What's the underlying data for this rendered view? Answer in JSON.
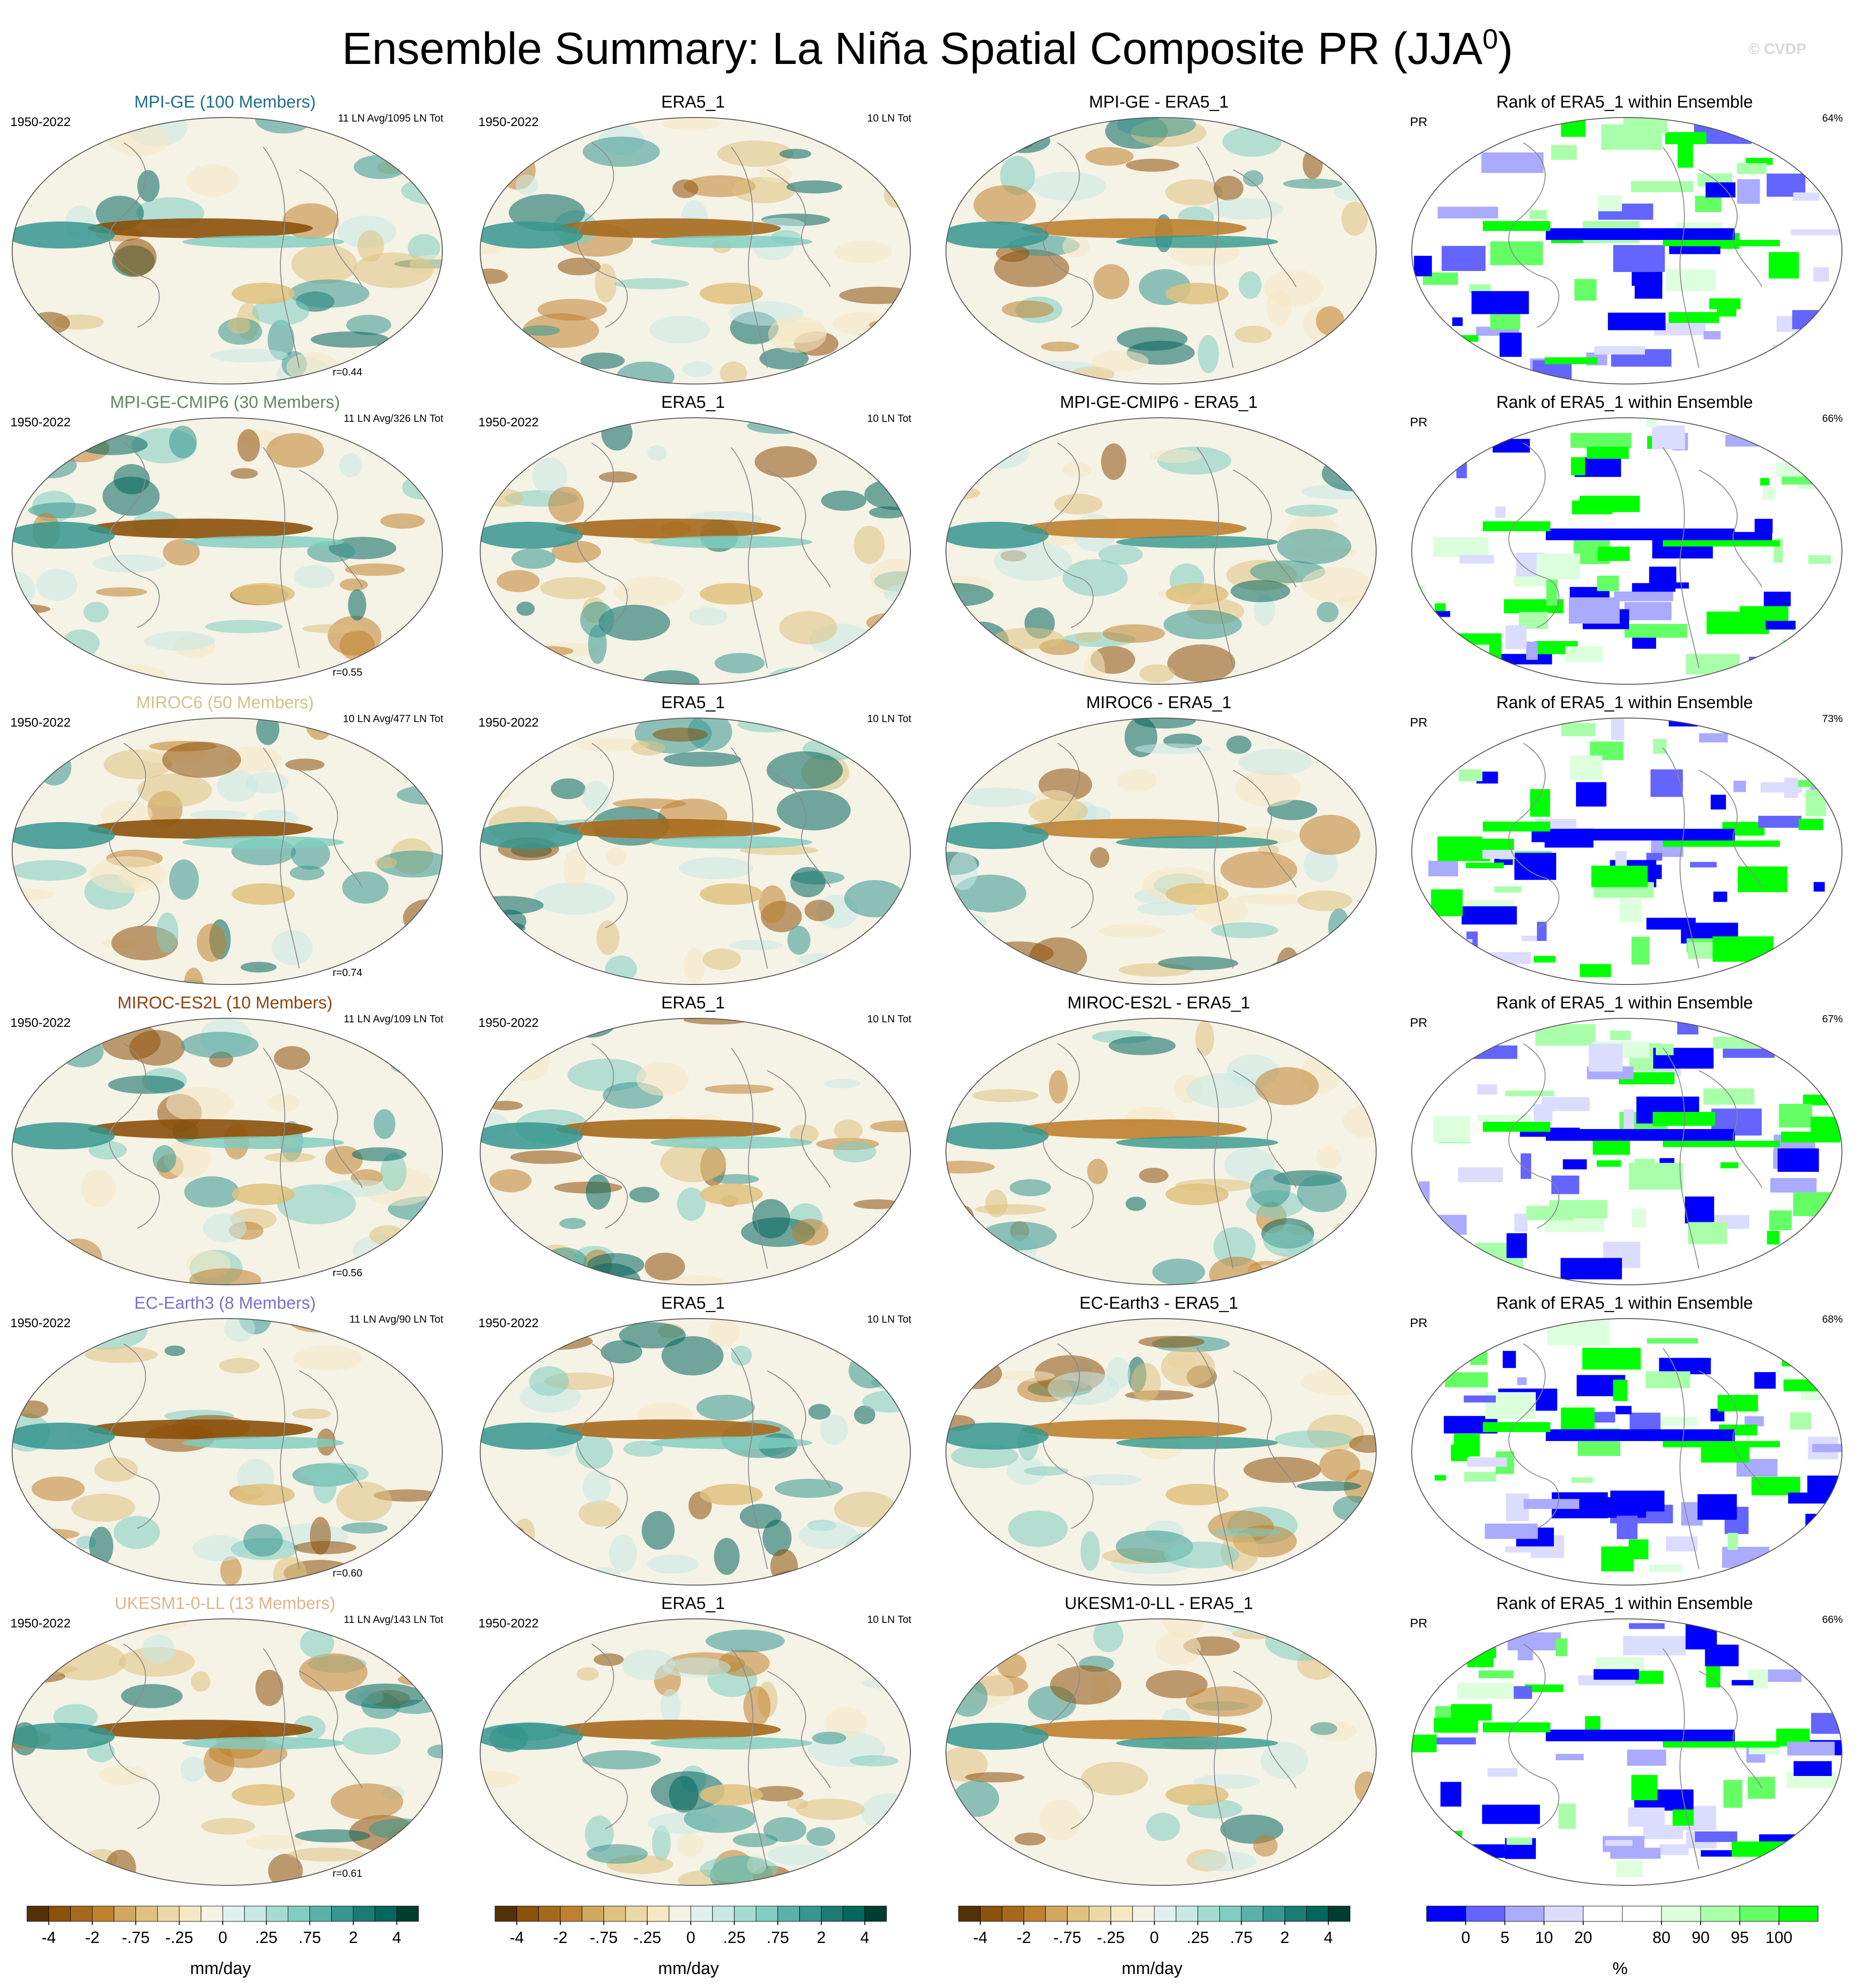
{
  "figure": {
    "title_main": "Ensemble Summary: La Niña Spatial Composite PR (JJA",
    "title_sup": "0",
    "title_close": ")",
    "watermark": "© CVDP"
  },
  "chart_data": {
    "type": "heatmap",
    "layout": "6 rows x 4 columns of global maps",
    "colors": {
      "dry": "#543005",
      "wet": "#003c30",
      "rank_low": "#0000ff",
      "rank_high": "#00ff00",
      "model_title_colors": [
        "#1f6e8c",
        "#5e8a5e",
        "#cfc38a",
        "#8b4513",
        "#7c6fcf",
        "#e0b48a"
      ]
    },
    "rows": [
      {
        "model_title": "MPI-GE (100 Members)",
        "model_title_color": "#1f6e8c",
        "period": "1950-2022",
        "model_count": "11 LN Avg/1095 LN Tot",
        "pattern_corr": "r=0.44",
        "obs_title": "ERA5_1",
        "obs_period": "1950-2022",
        "obs_count": "10 LN Tot",
        "diff_title": "MPI-GE - ERA5_1",
        "rank_title": "Rank of ERA5_1 within Ensemble",
        "rank_var": "PR",
        "rank_pct": "64%"
      },
      {
        "model_title": "MPI-GE-CMIP6 (30 Members)",
        "model_title_color": "#5e8a5e",
        "period": "1950-2022",
        "model_count": "11 LN Avg/326 LN Tot",
        "pattern_corr": "r=0.55",
        "obs_title": "ERA5_1",
        "obs_period": "1950-2022",
        "obs_count": "10 LN Tot",
        "diff_title": "MPI-GE-CMIP6 - ERA5_1",
        "rank_title": "Rank of ERA5_1 within Ensemble",
        "rank_var": "PR",
        "rank_pct": "66%"
      },
      {
        "model_title": "MIROC6 (50 Members)",
        "model_title_color": "#cfc38a",
        "period": "1950-2022",
        "model_count": "10 LN Avg/477 LN Tot",
        "pattern_corr": "r=0.74",
        "obs_title": "ERA5_1",
        "obs_period": "1950-2022",
        "obs_count": "10 LN Tot",
        "diff_title": "MIROC6 - ERA5_1",
        "rank_title": "Rank of ERA5_1 within Ensemble",
        "rank_var": "PR",
        "rank_pct": "73%"
      },
      {
        "model_title": "MIROC-ES2L (10 Members)",
        "model_title_color": "#8b4513",
        "period": "1950-2022",
        "model_count": "11 LN Avg/109 LN Tot",
        "pattern_corr": "r=0.56",
        "obs_title": "ERA5_1",
        "obs_period": "1950-2022",
        "obs_count": "10 LN Tot",
        "diff_title": "MIROC-ES2L - ERA5_1",
        "rank_title": "Rank of ERA5_1 within Ensemble",
        "rank_var": "PR",
        "rank_pct": "67%"
      },
      {
        "model_title": "EC-Earth3 (8 Members)",
        "model_title_color": "#7c6fcf",
        "period": "1950-2022",
        "model_count": "11 LN Avg/90 LN Tot",
        "pattern_corr": "r=0.60",
        "obs_title": "ERA5_1",
        "obs_period": "1950-2022",
        "obs_count": "10 LN Tot",
        "diff_title": "EC-Earth3 - ERA5_1",
        "rank_title": "Rank of ERA5_1 within Ensemble",
        "rank_var": "PR",
        "rank_pct": "68%"
      },
      {
        "model_title": "UKESM1-0-LL (13 Members)",
        "model_title_color": "#e0b48a",
        "period": "1950-2022",
        "model_count": "11 LN Avg/143 LN Tot",
        "pattern_corr": "r=0.61",
        "obs_title": "ERA5_1",
        "obs_period": "1950-2022",
        "obs_count": "10 LN Tot",
        "diff_title": "UKESM1-0-LL - ERA5_1",
        "rank_title": "Rank of ERA5_1 within Ensemble",
        "rank_var": "PR",
        "rank_pct": "66%"
      }
    ],
    "precip_colorbar": {
      "colors": [
        "#543005",
        "#8c510a",
        "#a6691c",
        "#bf812d",
        "#d2a760",
        "#dfc27d",
        "#ecd9a8",
        "#f6e8c3",
        "#f5f2e6",
        "#e0f1ef",
        "#c7eae5",
        "#a6dbd2",
        "#80cdc1",
        "#5bb1a8",
        "#35978f",
        "#1b7b73",
        "#01665e",
        "#003c30"
      ],
      "tick_labels": [
        "-4",
        "-2",
        "-.75",
        "-.25",
        "0",
        ".25",
        ".75",
        "2",
        "4"
      ],
      "unit": "mm/day"
    },
    "rank_colorbar": {
      "colors": [
        "#0000ff",
        "#6464ff",
        "#aaaaff",
        "#dcdcff",
        "#ffffff",
        "#ffffff",
        "#dcffdc",
        "#aaffaa",
        "#64ff64",
        "#00ff00"
      ],
      "tick_labels": [
        "0",
        "5",
        "10",
        "20",
        "80",
        "90",
        "95",
        "100"
      ],
      "unit": "%"
    }
  }
}
